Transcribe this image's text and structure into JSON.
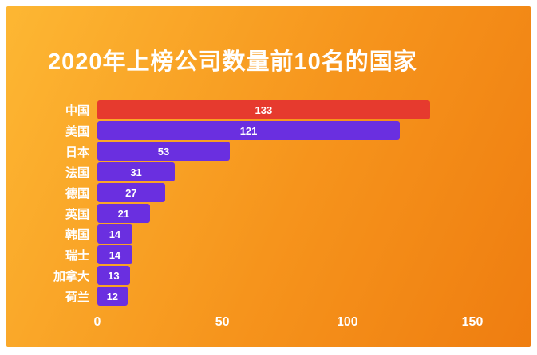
{
  "chart_data": {
    "type": "bar",
    "orientation": "horizontal",
    "title": "2020年上榜公司数量前10名的国家",
    "categories": [
      "中国",
      "美国",
      "日本",
      "法国",
      "德国",
      "英国",
      "韩国",
      "瑞士",
      "加拿大",
      "荷兰"
    ],
    "values": [
      133,
      121,
      53,
      31,
      27,
      21,
      14,
      14,
      13,
      12
    ],
    "xlabel": "",
    "ylabel": "",
    "xticks": [
      0,
      50,
      100,
      150
    ],
    "xlim": [
      0,
      165
    ],
    "grid": false,
    "legend": false,
    "highlight_index": 0,
    "colors": {
      "bar_highlight": "#e63a2e",
      "bar_default": "#6a2fe0",
      "text": "#ffffff",
      "background_gradient_from": "#fdb733",
      "background_gradient_mid": "#f6941c",
      "background_gradient_to": "#ef7d10"
    }
  }
}
